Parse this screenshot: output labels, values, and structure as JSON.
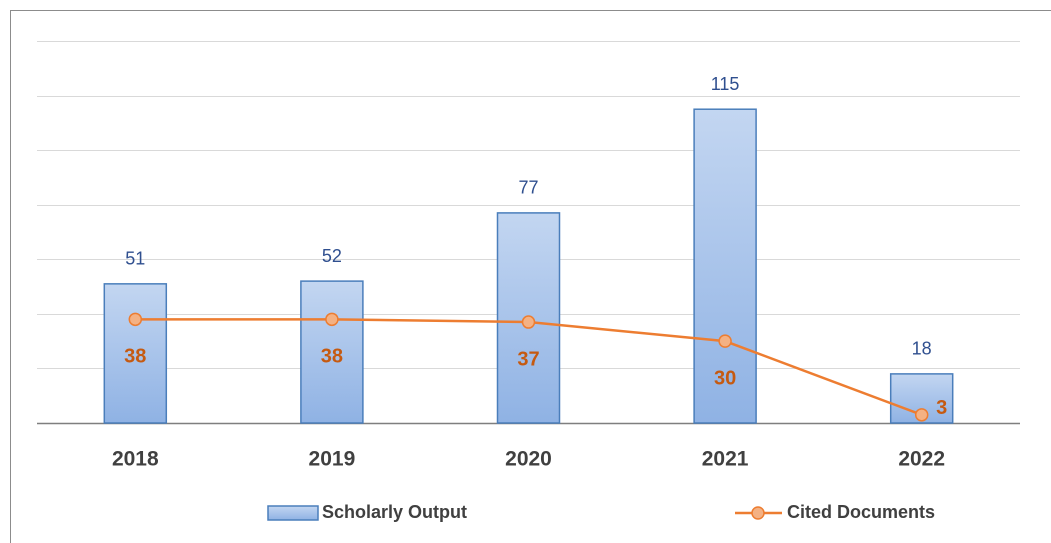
{
  "chart_data": {
    "type": "bar-line",
    "categories": [
      "2018",
      "2019",
      "2020",
      "2021",
      "2022"
    ],
    "series": [
      {
        "name": "Scholarly Output",
        "type": "bar",
        "color": "#9dbce8",
        "values": [
          51,
          52,
          77,
          115,
          18
        ]
      },
      {
        "name": "Cited Documents",
        "type": "line",
        "color": "#ed7d31",
        "values": [
          38,
          38,
          37,
          30,
          3
        ]
      }
    ],
    "ylim": [
      0,
      140
    ],
    "yticks": [
      0,
      20,
      40,
      60,
      80,
      100,
      120,
      140
    ],
    "grid": true,
    "legend": "bottom"
  }
}
